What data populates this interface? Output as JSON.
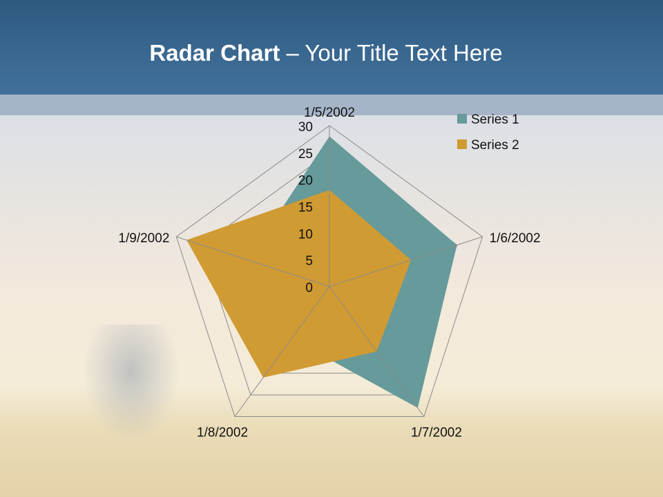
{
  "header": {
    "title_bold": "Radar Chart",
    "title_rest": " – Your Title Text Here"
  },
  "chart_data": {
    "type": "radar",
    "categories": [
      "1/5/2002",
      "1/6/2002",
      "1/7/2002",
      "1/8/2002",
      "1/9/2002"
    ],
    "ticks": [
      "0",
      "5",
      "10",
      "15",
      "20",
      "25",
      "30"
    ],
    "rmax": 30,
    "legend": "top-right",
    "series": [
      {
        "name": "Series 1",
        "color": "#669a9b",
        "values": [
          28,
          25,
          28,
          12,
          16
        ]
      },
      {
        "name": "Series 2",
        "color": "#d09b33",
        "values": [
          18,
          16,
          15,
          21,
          28
        ]
      }
    ]
  }
}
